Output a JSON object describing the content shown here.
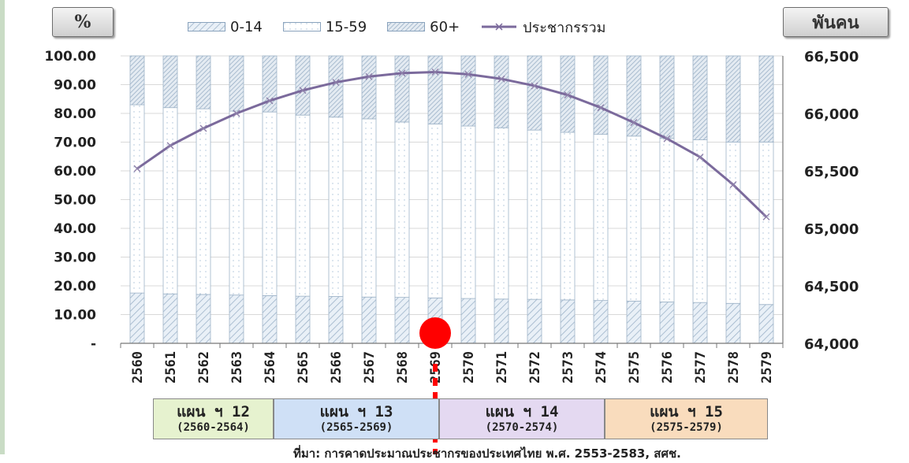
{
  "left_unit_label": "%",
  "right_unit_label": "พันคน",
  "legend": [
    {
      "label": "0-14",
      "pattern": "hatch"
    },
    {
      "label": "15-59",
      "pattern": "dots"
    },
    {
      "label": "60+",
      "pattern": "hatch-dense"
    },
    {
      "label": "ประชากรรวม",
      "pattern": "line"
    }
  ],
  "chart_data": {
    "type": "bar",
    "stacked": true,
    "categories": [
      "2560",
      "2561",
      "2562",
      "2563",
      "2564",
      "2565",
      "2566",
      "2567",
      "2568",
      "2569",
      "2570",
      "2571",
      "2572",
      "2573",
      "2574",
      "2575",
      "2576",
      "2577",
      "2578",
      "2579"
    ],
    "series": [
      {
        "name": "0-14",
        "axis": "left",
        "values": [
          17.5,
          17.2,
          17.0,
          16.8,
          16.6,
          16.4,
          16.3,
          16.1,
          16.0,
          15.8,
          15.6,
          15.4,
          15.3,
          15.1,
          14.9,
          14.7,
          14.4,
          14.2,
          13.9,
          13.5
        ]
      },
      {
        "name": "15-59",
        "axis": "left",
        "values": [
          65.5,
          64.8,
          64.6,
          64.0,
          63.9,
          63.0,
          62.4,
          62.0,
          61.0,
          60.5,
          60.0,
          59.6,
          58.9,
          58.3,
          57.8,
          57.4,
          56.9,
          56.6,
          56.1,
          56.5
        ]
      },
      {
        "name": "60+",
        "axis": "left",
        "values": [
          17.0,
          18.0,
          18.4,
          19.2,
          19.5,
          20.6,
          21.3,
          21.9,
          23.0,
          23.7,
          24.4,
          25.0,
          25.8,
          26.6,
          27.3,
          27.9,
          28.7,
          29.2,
          30.0,
          30.0
        ]
      },
      {
        "name": "ประชากรรวม",
        "type": "line",
        "axis": "right",
        "values": [
          65520,
          65720,
          65870,
          66000,
          66110,
          66200,
          66270,
          66320,
          66350,
          66360,
          66340,
          66300,
          66240,
          66160,
          66050,
          65920,
          65780,
          65620,
          65380,
          65100
        ]
      }
    ],
    "y_left": {
      "ylim": [
        0,
        100
      ],
      "ticks": [
        "-",
        "10.00",
        "20.00",
        "30.00",
        "40.00",
        "50.00",
        "60.00",
        "70.00",
        "80.00",
        "90.00",
        "100.00"
      ]
    },
    "y_right": {
      "ylim": [
        64000,
        66500
      ],
      "ticks": [
        "64,000",
        "64,500",
        "65,000",
        "65,500",
        "66,000",
        "66,500"
      ]
    },
    "marker": {
      "category": "2569",
      "color": "#ff0000"
    }
  },
  "plans": [
    {
      "title": "แผน ฯ 12",
      "range": "(2560-2564)",
      "color": "#e6f2cf"
    },
    {
      "title": "แผน ฯ 13",
      "range": "(2565-2569)",
      "color": "#cfe0f6"
    },
    {
      "title": "แผน ฯ 14",
      "range": "(2570-2574)",
      "color": "#e4d9f1"
    },
    {
      "title": "แผน ฯ 15",
      "range": "(2575-2579)",
      "color": "#f9dcbd"
    }
  ],
  "source_note": "ที่มา: การคาดประมาณประชากรของประเทศไทย พ.ศ. 2553-2583, สศช."
}
